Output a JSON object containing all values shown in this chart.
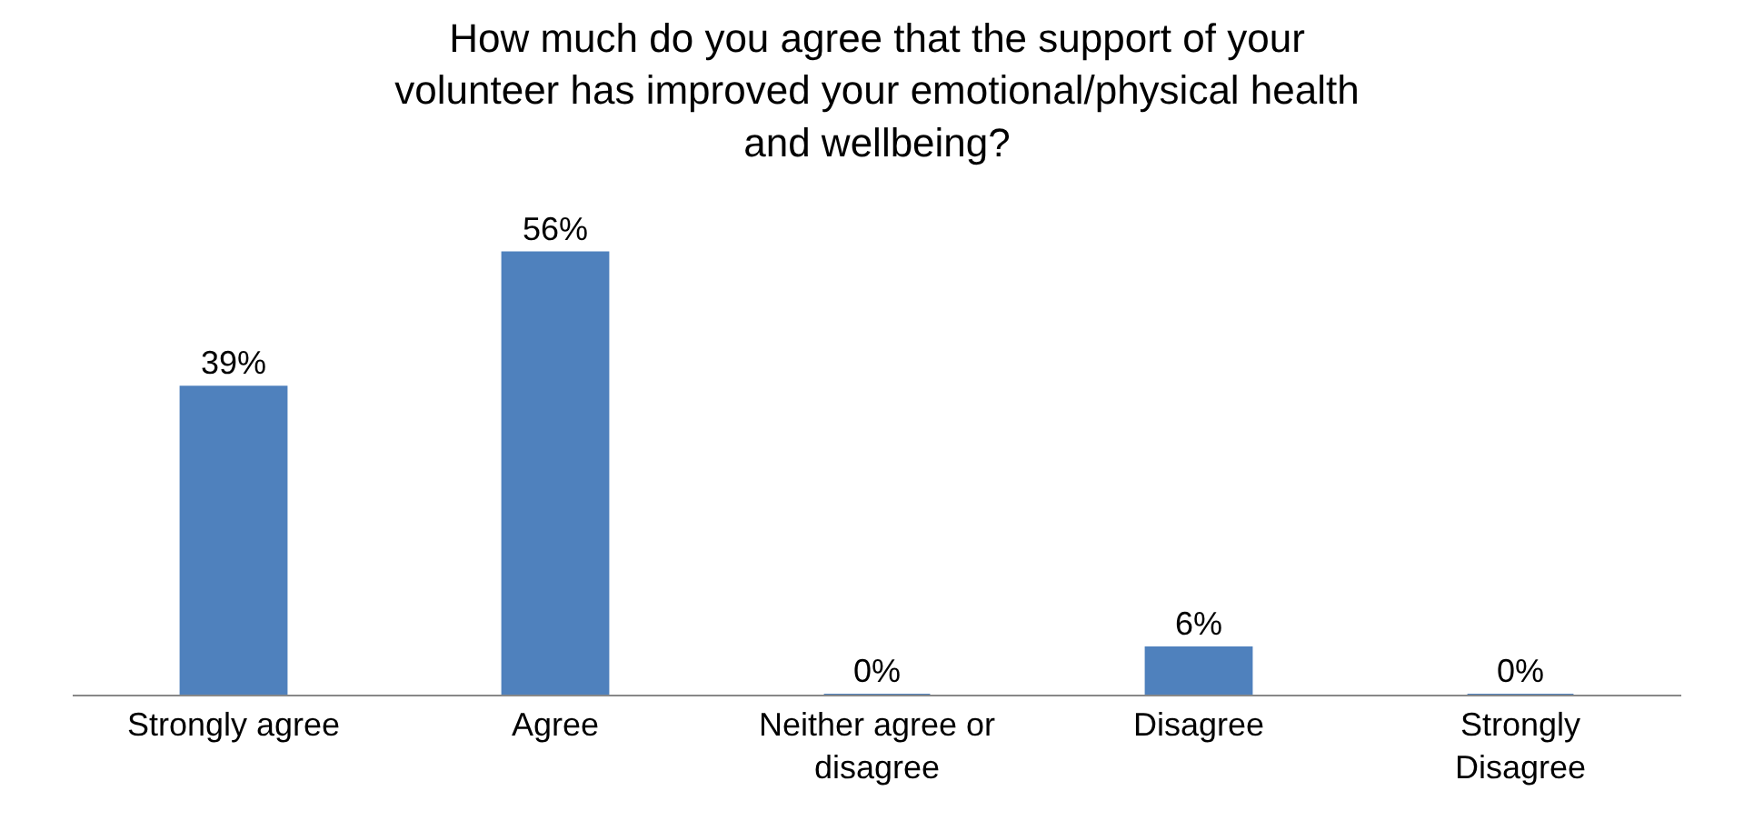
{
  "chart_data": {
    "type": "bar",
    "title": "How much do you agree that the support of your\nvolunteer has improved your emotional/physical health\nand wellbeing?",
    "categories": [
      "Strongly agree",
      "Agree",
      "Neither agree or\ndisagree",
      "Disagree",
      "Strongly\nDisagree"
    ],
    "values": [
      39,
      56,
      0,
      6,
      0
    ],
    "value_labels": [
      "39%",
      "56%",
      "0%",
      "6%",
      "0%"
    ],
    "color": "#4f81bd",
    "legend": false
  }
}
